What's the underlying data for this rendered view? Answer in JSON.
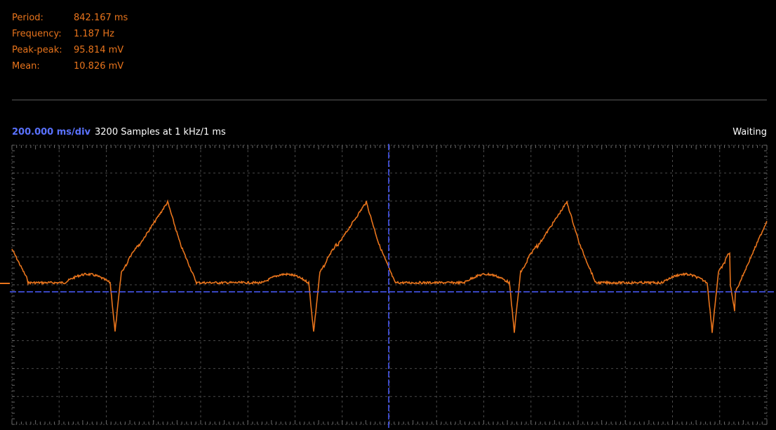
{
  "measurements": [
    {
      "label": "Period:",
      "value": "842.167 ms"
    },
    {
      "label": "Frequency:",
      "value": "1.187 Hz"
    },
    {
      "label": "Peak-peak:",
      "value": "95.814 mV"
    },
    {
      "label": "Mean:",
      "value": "10.826 mV"
    }
  ],
  "status": {
    "timebase": "200.000 ms/div",
    "samples": "3200 Samples at 1 kHz/1 ms",
    "state": "Waiting"
  },
  "colors": {
    "trace": "#e8741c",
    "cursor": "#4a5cff",
    "grid": "#4a4a4a",
    "text": "#ffffff"
  }
}
